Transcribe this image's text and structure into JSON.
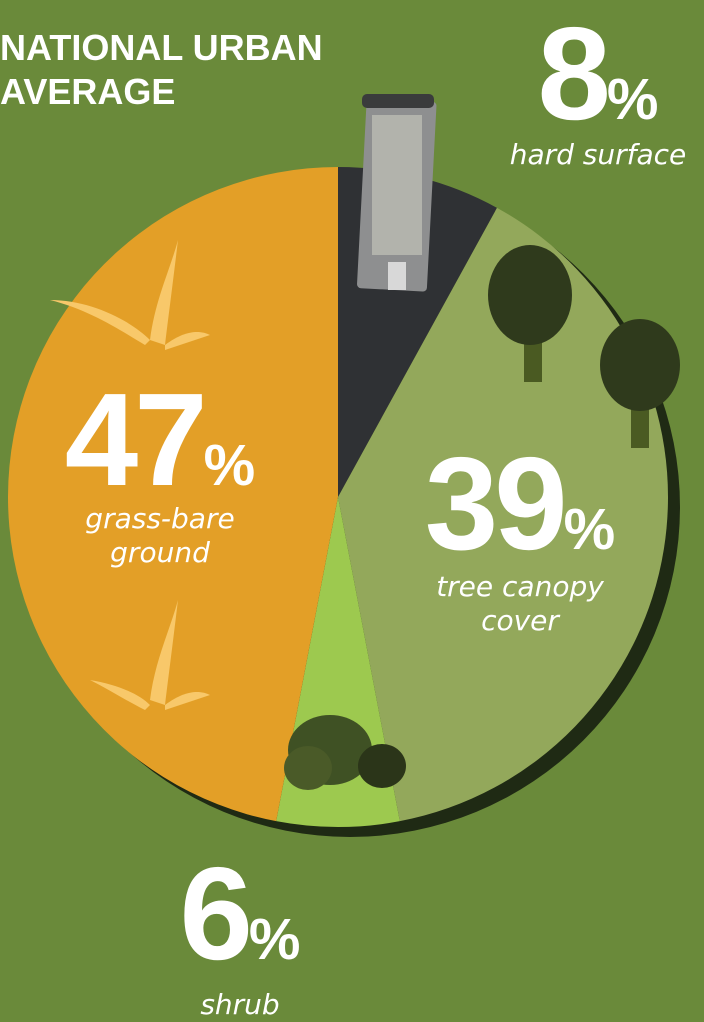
{
  "chart_data": {
    "type": "pie",
    "title": "NATIONAL URBAN AVERAGE",
    "categories": [
      "hard surface",
      "tree canopy cover",
      "shrub",
      "grass-bare ground"
    ],
    "values": [
      8,
      39,
      6,
      47
    ],
    "unit": "%",
    "colors": [
      "#2f3134",
      "#93a85b",
      "#9dc94f",
      "#e39f27"
    ]
  }
}
